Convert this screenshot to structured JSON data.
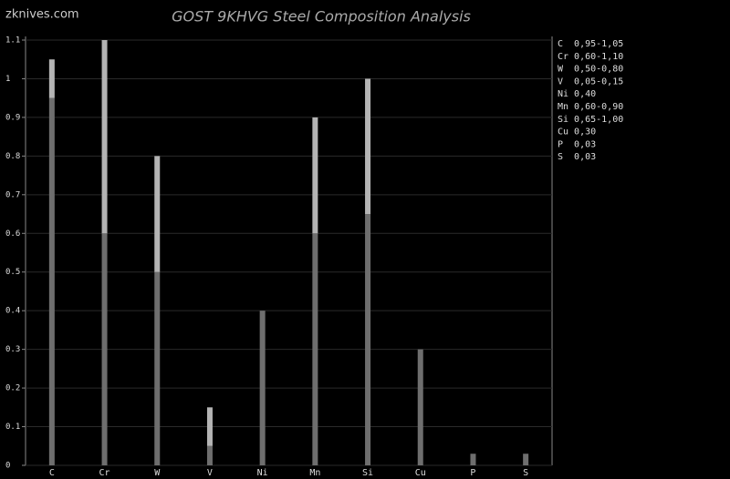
{
  "watermark": "zknives.com",
  "chart_data": {
    "type": "range-bar",
    "title": "GOST 9KHVG Steel Composition Analysis",
    "categories": [
      "C",
      "Cr",
      "W",
      "V",
      "Ni",
      "Mn",
      "Si",
      "Cu",
      "P",
      "S"
    ],
    "low": [
      0.95,
      0.6,
      0.5,
      0.05,
      0.4,
      0.6,
      0.65,
      0.3,
      0.03,
      0.03
    ],
    "high": [
      1.05,
      1.1,
      0.8,
      0.15,
      0.4,
      0.9,
      1.0,
      0.3,
      0.03,
      0.03
    ],
    "low_color": "#6e6e6e",
    "high_color": "#b4b4b4",
    "legend_labels": [
      "C  0,95-1,05",
      "Cr 0,60-1,10",
      "W  0,50-0,80",
      "V  0,05-0,15",
      "Ni 0,40",
      "Mn 0,60-0,90",
      "Si 0,65-1,00",
      "Cu 0,30",
      "P  0,03",
      "S  0,03"
    ],
    "ylim": [
      0,
      1.1
    ],
    "yticks": [
      0,
      0.1,
      0.2,
      0.3,
      0.4,
      0.5,
      0.6,
      0.7,
      0.8,
      0.9,
      1,
      1.1
    ],
    "grid": true
  }
}
